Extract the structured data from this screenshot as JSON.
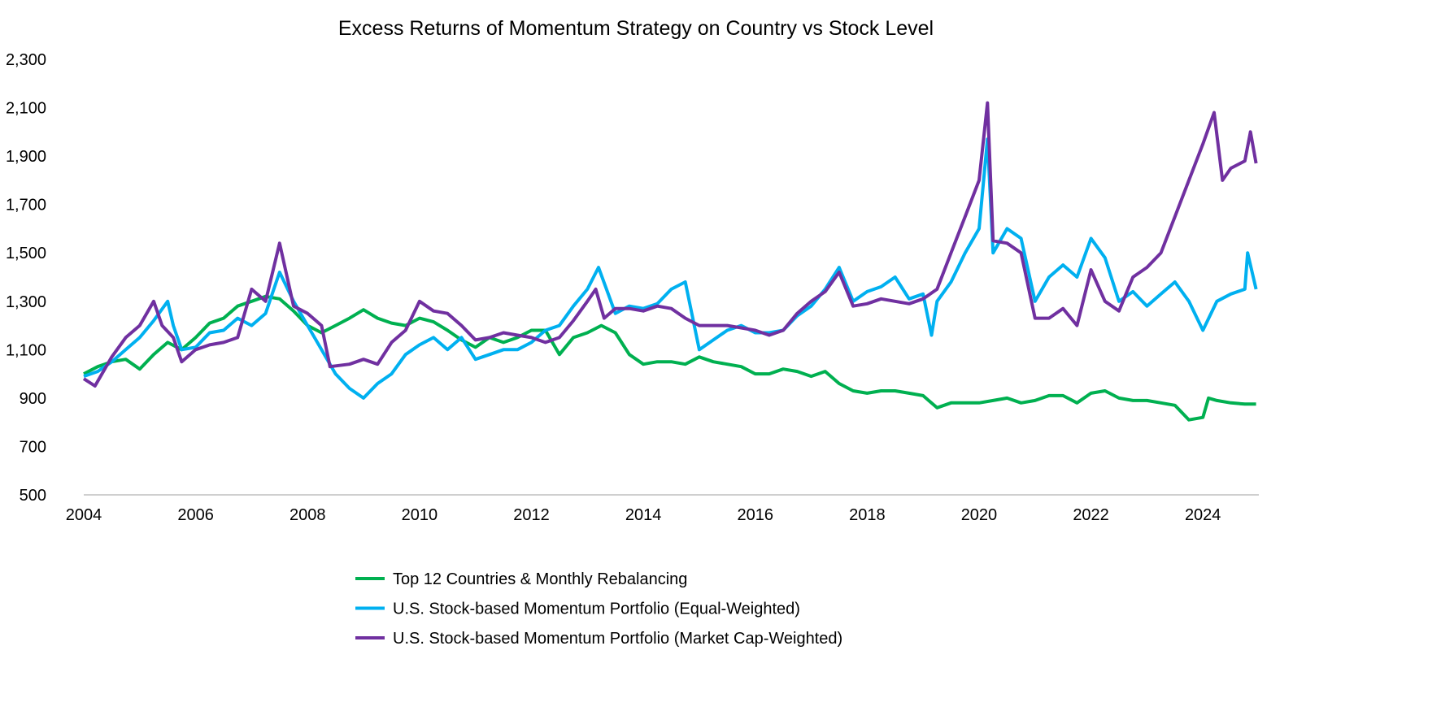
{
  "chart_data": {
    "type": "line",
    "title": "Excess Returns of Momentum Strategy on Country vs Stock Level",
    "xlabel": "",
    "ylabel": "",
    "xlim": [
      2004,
      2025
    ],
    "ylim": [
      500,
      2300
    ],
    "x_ticks": [
      "2004",
      "2006",
      "2008",
      "2010",
      "2012",
      "2014",
      "2016",
      "2018",
      "2020",
      "2022",
      "2024"
    ],
    "y_ticks": [
      "500",
      "700",
      "900",
      "1,100",
      "1,300",
      "1,500",
      "1,700",
      "1,900",
      "2,100",
      "2,300"
    ],
    "grid": false,
    "legend_position": "bottom",
    "series": [
      {
        "name": "Top 12 Countries & Monthly Rebalancing",
        "color": "#00B050",
        "points": [
          [
            2004.0,
            1000
          ],
          [
            2004.25,
            1030
          ],
          [
            2004.5,
            1050
          ],
          [
            2004.75,
            1060
          ],
          [
            2005.0,
            1020
          ],
          [
            2005.25,
            1080
          ],
          [
            2005.5,
            1130
          ],
          [
            2005.75,
            1100
          ],
          [
            2006.0,
            1150
          ],
          [
            2006.25,
            1210
          ],
          [
            2006.5,
            1230
          ],
          [
            2006.75,
            1280
          ],
          [
            2007.0,
            1300
          ],
          [
            2007.25,
            1320
          ],
          [
            2007.5,
            1310
          ],
          [
            2007.75,
            1260
          ],
          [
            2008.0,
            1200
          ],
          [
            2008.25,
            1170
          ],
          [
            2008.5,
            1200
          ],
          [
            2008.75,
            1230
          ],
          [
            2009.0,
            1265
          ],
          [
            2009.25,
            1230
          ],
          [
            2009.5,
            1210
          ],
          [
            2009.75,
            1200
          ],
          [
            2010.0,
            1230
          ],
          [
            2010.25,
            1215
          ],
          [
            2010.5,
            1180
          ],
          [
            2010.75,
            1140
          ],
          [
            2011.0,
            1110
          ],
          [
            2011.25,
            1150
          ],
          [
            2011.5,
            1130
          ],
          [
            2011.75,
            1150
          ],
          [
            2012.0,
            1180
          ],
          [
            2012.25,
            1180
          ],
          [
            2012.5,
            1080
          ],
          [
            2012.75,
            1150
          ],
          [
            2013.0,
            1170
          ],
          [
            2013.25,
            1200
          ],
          [
            2013.5,
            1170
          ],
          [
            2013.75,
            1080
          ],
          [
            2014.0,
            1040
          ],
          [
            2014.25,
            1050
          ],
          [
            2014.5,
            1050
          ],
          [
            2014.75,
            1040
          ],
          [
            2015.0,
            1070
          ],
          [
            2015.25,
            1050
          ],
          [
            2015.5,
            1040
          ],
          [
            2015.75,
            1030
          ],
          [
            2016.0,
            1000
          ],
          [
            2016.25,
            1000
          ],
          [
            2016.5,
            1020
          ],
          [
            2016.75,
            1010
          ],
          [
            2017.0,
            990
          ],
          [
            2017.25,
            1010
          ],
          [
            2017.5,
            960
          ],
          [
            2017.75,
            930
          ],
          [
            2018.0,
            920
          ],
          [
            2018.25,
            930
          ],
          [
            2018.5,
            930
          ],
          [
            2018.75,
            920
          ],
          [
            2019.0,
            910
          ],
          [
            2019.25,
            860
          ],
          [
            2019.5,
            880
          ],
          [
            2019.75,
            880
          ],
          [
            2020.0,
            880
          ],
          [
            2020.25,
            890
          ],
          [
            2020.5,
            900
          ],
          [
            2020.75,
            880
          ],
          [
            2021.0,
            890
          ],
          [
            2021.25,
            910
          ],
          [
            2021.5,
            910
          ],
          [
            2021.75,
            880
          ],
          [
            2022.0,
            920
          ],
          [
            2022.25,
            930
          ],
          [
            2022.5,
            900
          ],
          [
            2022.75,
            890
          ],
          [
            2023.0,
            890
          ],
          [
            2023.25,
            880
          ],
          [
            2023.5,
            870
          ],
          [
            2023.75,
            810
          ],
          [
            2024.0,
            820
          ],
          [
            2024.1,
            900
          ],
          [
            2024.25,
            890
          ],
          [
            2024.5,
            880
          ],
          [
            2024.75,
            875
          ],
          [
            2024.95,
            875
          ]
        ]
      },
      {
        "name": "U.S. Stock-based Momentum Portfolio (Equal-Weighted)",
        "color": "#00B0F0",
        "points": [
          [
            2004.0,
            990
          ],
          [
            2004.25,
            1010
          ],
          [
            2004.5,
            1050
          ],
          [
            2004.75,
            1100
          ],
          [
            2005.0,
            1150
          ],
          [
            2005.25,
            1220
          ],
          [
            2005.5,
            1300
          ],
          [
            2005.6,
            1200
          ],
          [
            2005.75,
            1100
          ],
          [
            2006.0,
            1110
          ],
          [
            2006.25,
            1170
          ],
          [
            2006.5,
            1180
          ],
          [
            2006.75,
            1230
          ],
          [
            2007.0,
            1200
          ],
          [
            2007.25,
            1250
          ],
          [
            2007.5,
            1420
          ],
          [
            2007.75,
            1300
          ],
          [
            2008.0,
            1200
          ],
          [
            2008.25,
            1100
          ],
          [
            2008.5,
            1000
          ],
          [
            2008.75,
            940
          ],
          [
            2009.0,
            900
          ],
          [
            2009.25,
            960
          ],
          [
            2009.5,
            1000
          ],
          [
            2009.75,
            1080
          ],
          [
            2010.0,
            1120
          ],
          [
            2010.25,
            1150
          ],
          [
            2010.5,
            1100
          ],
          [
            2010.75,
            1150
          ],
          [
            2011.0,
            1060
          ],
          [
            2011.25,
            1080
          ],
          [
            2011.5,
            1100
          ],
          [
            2011.75,
            1100
          ],
          [
            2012.0,
            1130
          ],
          [
            2012.25,
            1180
          ],
          [
            2012.5,
            1200
          ],
          [
            2012.75,
            1280
          ],
          [
            2013.0,
            1350
          ],
          [
            2013.2,
            1440
          ],
          [
            2013.5,
            1250
          ],
          [
            2013.75,
            1280
          ],
          [
            2014.0,
            1270
          ],
          [
            2014.25,
            1290
          ],
          [
            2014.5,
            1350
          ],
          [
            2014.75,
            1380
          ],
          [
            2015.0,
            1100
          ],
          [
            2015.25,
            1140
          ],
          [
            2015.5,
            1180
          ],
          [
            2015.75,
            1200
          ],
          [
            2016.0,
            1170
          ],
          [
            2016.25,
            1170
          ],
          [
            2016.5,
            1180
          ],
          [
            2016.75,
            1240
          ],
          [
            2017.0,
            1280
          ],
          [
            2017.25,
            1350
          ],
          [
            2017.5,
            1440
          ],
          [
            2017.75,
            1300
          ],
          [
            2018.0,
            1340
          ],
          [
            2018.25,
            1360
          ],
          [
            2018.5,
            1400
          ],
          [
            2018.75,
            1310
          ],
          [
            2019.0,
            1330
          ],
          [
            2019.15,
            1160
          ],
          [
            2019.25,
            1300
          ],
          [
            2019.5,
            1380
          ],
          [
            2019.75,
            1500
          ],
          [
            2020.0,
            1600
          ],
          [
            2020.15,
            1970
          ],
          [
            2020.25,
            1500
          ],
          [
            2020.5,
            1600
          ],
          [
            2020.75,
            1560
          ],
          [
            2021.0,
            1300
          ],
          [
            2021.25,
            1400
          ],
          [
            2021.5,
            1450
          ],
          [
            2021.75,
            1400
          ],
          [
            2022.0,
            1560
          ],
          [
            2022.25,
            1480
          ],
          [
            2022.5,
            1300
          ],
          [
            2022.75,
            1340
          ],
          [
            2023.0,
            1280
          ],
          [
            2023.25,
            1330
          ],
          [
            2023.5,
            1380
          ],
          [
            2023.75,
            1300
          ],
          [
            2024.0,
            1180
          ],
          [
            2024.25,
            1300
          ],
          [
            2024.5,
            1330
          ],
          [
            2024.75,
            1350
          ],
          [
            2024.8,
            1500
          ],
          [
            2024.95,
            1350
          ]
        ]
      },
      {
        "name": "U.S. Stock-based Momentum Portfolio (Market Cap-Weighted)",
        "color": "#7030A0",
        "points": [
          [
            2004.0,
            980
          ],
          [
            2004.2,
            950
          ],
          [
            2004.5,
            1070
          ],
          [
            2004.75,
            1150
          ],
          [
            2005.0,
            1200
          ],
          [
            2005.25,
            1300
          ],
          [
            2005.4,
            1200
          ],
          [
            2005.6,
            1150
          ],
          [
            2005.75,
            1050
          ],
          [
            2006.0,
            1100
          ],
          [
            2006.25,
            1120
          ],
          [
            2006.5,
            1130
          ],
          [
            2006.75,
            1150
          ],
          [
            2007.0,
            1350
          ],
          [
            2007.25,
            1300
          ],
          [
            2007.5,
            1540
          ],
          [
            2007.75,
            1280
          ],
          [
            2008.0,
            1250
          ],
          [
            2008.25,
            1200
          ],
          [
            2008.4,
            1030
          ],
          [
            2008.75,
            1040
          ],
          [
            2009.0,
            1060
          ],
          [
            2009.25,
            1040
          ],
          [
            2009.5,
            1130
          ],
          [
            2009.75,
            1180
          ],
          [
            2010.0,
            1300
          ],
          [
            2010.25,
            1260
          ],
          [
            2010.5,
            1250
          ],
          [
            2010.75,
            1200
          ],
          [
            2011.0,
            1140
          ],
          [
            2011.25,
            1150
          ],
          [
            2011.5,
            1170
          ],
          [
            2011.75,
            1160
          ],
          [
            2012.0,
            1150
          ],
          [
            2012.25,
            1130
          ],
          [
            2012.5,
            1150
          ],
          [
            2012.75,
            1220
          ],
          [
            2013.0,
            1300
          ],
          [
            2013.15,
            1350
          ],
          [
            2013.3,
            1230
          ],
          [
            2013.5,
            1270
          ],
          [
            2013.75,
            1270
          ],
          [
            2014.0,
            1260
          ],
          [
            2014.25,
            1280
          ],
          [
            2014.5,
            1270
          ],
          [
            2014.75,
            1230
          ],
          [
            2015.0,
            1200
          ],
          [
            2015.25,
            1200
          ],
          [
            2015.5,
            1200
          ],
          [
            2015.75,
            1190
          ],
          [
            2016.0,
            1180
          ],
          [
            2016.25,
            1160
          ],
          [
            2016.5,
            1180
          ],
          [
            2016.75,
            1250
          ],
          [
            2017.0,
            1300
          ],
          [
            2017.25,
            1340
          ],
          [
            2017.5,
            1420
          ],
          [
            2017.75,
            1280
          ],
          [
            2018.0,
            1290
          ],
          [
            2018.25,
            1310
          ],
          [
            2018.5,
            1300
          ],
          [
            2018.75,
            1290
          ],
          [
            2019.0,
            1310
          ],
          [
            2019.25,
            1350
          ],
          [
            2019.5,
            1500
          ],
          [
            2019.75,
            1650
          ],
          [
            2020.0,
            1800
          ],
          [
            2020.15,
            2120
          ],
          [
            2020.25,
            1550
          ],
          [
            2020.5,
            1540
          ],
          [
            2020.75,
            1500
          ],
          [
            2021.0,
            1230
          ],
          [
            2021.25,
            1230
          ],
          [
            2021.5,
            1270
          ],
          [
            2021.75,
            1200
          ],
          [
            2022.0,
            1430
          ],
          [
            2022.25,
            1300
          ],
          [
            2022.5,
            1260
          ],
          [
            2022.75,
            1400
          ],
          [
            2023.0,
            1440
          ],
          [
            2023.25,
            1500
          ],
          [
            2023.5,
            1650
          ],
          [
            2023.75,
            1800
          ],
          [
            2024.0,
            1950
          ],
          [
            2024.2,
            2080
          ],
          [
            2024.35,
            1800
          ],
          [
            2024.5,
            1850
          ],
          [
            2024.75,
            1880
          ],
          [
            2024.85,
            2000
          ],
          [
            2024.95,
            1870
          ]
        ]
      }
    ]
  }
}
